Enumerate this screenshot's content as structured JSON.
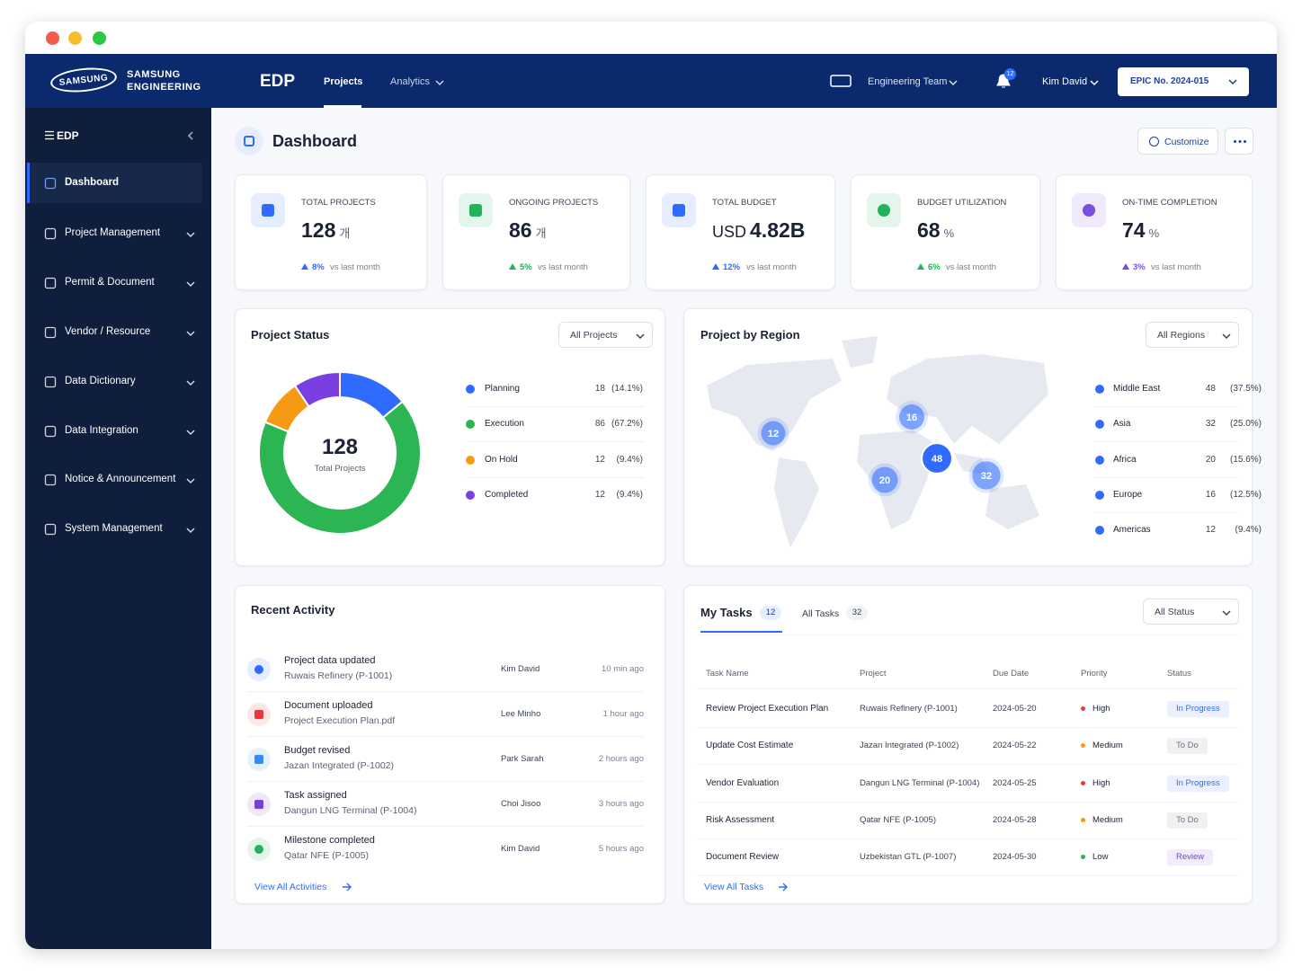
{
  "brand": {
    "logo": "SAMSUNG",
    "line1": "SAMSUNG",
    "line2": "ENGINEERING"
  },
  "nav": {
    "app": "EDP",
    "tabs": [
      "Projects",
      "Analytics"
    ],
    "team": "Engineering Team",
    "notifications": 12,
    "user": "Kim David",
    "epic": "EPIC No. 2024-015"
  },
  "sidebar": {
    "title": "EDP",
    "items": [
      "Dashboard",
      "Project Management",
      "Permit & Document",
      "Vendor / Resource",
      "Data Dictionary",
      "Data Integration",
      "Notice & Announcement",
      "System Management"
    ]
  },
  "page": {
    "title": "Dashboard",
    "customize": "Customize"
  },
  "kpis": [
    {
      "label": "TOTAL PROJECTS",
      "prefix": null,
      "value": "128",
      "unit": "개",
      "change": "8%",
      "note": "vs last month",
      "color": "#2f6bff"
    },
    {
      "label": "ONGOING PROJECTS",
      "prefix": null,
      "value": "86",
      "unit": "개",
      "change": "5%",
      "note": "vs last month",
      "color": "#22b257"
    },
    {
      "label": "TOTAL BUDGET",
      "prefix": "USD",
      "value": "4.82B",
      "unit": null,
      "change": "12%",
      "note": "vs last month",
      "color": "#2f6bff"
    },
    {
      "label": "BUDGET UTILIZATION",
      "prefix": null,
      "value": "68",
      "unit": "%",
      "change": "6%",
      "note": "vs last month",
      "color": "#22b257"
    },
    {
      "label": "ON-TIME COMPLETION",
      "prefix": null,
      "value": "74",
      "unit": "%",
      "change": "3%",
      "note": "vs last month",
      "color": "#7b4de0"
    }
  ],
  "project_status": {
    "title": "Project Status",
    "filter": "All Projects",
    "total": 128,
    "total_label": "Total Projects",
    "items": [
      {
        "name": "Planning",
        "count": 18,
        "share": "(14.1%)",
        "color": "#2f6bff"
      },
      {
        "name": "Execution",
        "count": 86,
        "share": "(67.2%)",
        "color": "#2cb653"
      },
      {
        "name": "On Hold",
        "count": 12,
        "share": "(9.4%)",
        "color": "#f59a12"
      },
      {
        "name": "Completed",
        "count": 12,
        "share": "(9.4%)",
        "color": "#7a3fe0"
      }
    ]
  },
  "region": {
    "title": "Project by Region",
    "filter": "All Regions",
    "color": "#2f6bff",
    "items": [
      {
        "name": "Middle East",
        "count": 48,
        "share": "(37.5%)"
      },
      {
        "name": "Asia",
        "count": 32,
        "share": "(25.0%)"
      },
      {
        "name": "Africa",
        "count": 20,
        "share": "(15.6%)"
      },
      {
        "name": "Europe",
        "count": 16,
        "share": "(12.5%)"
      },
      {
        "name": "Americas",
        "count": 12,
        "share": "(9.4%)"
      }
    ]
  },
  "activity": {
    "title": "Recent Activity",
    "link": "View All Activities",
    "items": [
      {
        "title": "Project data updated",
        "subtitle": "Ruwais Refinery (P-1001)",
        "user": "Kim David",
        "time": "10 min ago",
        "color": "#2f6bff"
      },
      {
        "title": "Document uploaded",
        "subtitle": "Project Execution Plan.pdf",
        "user": "Lee Minho",
        "time": "1 hour ago",
        "color": "#e8383d"
      },
      {
        "title": "Budget revised",
        "subtitle": "Jazan Integrated (P-1002)",
        "user": "Park Sarah",
        "time": "2 hours ago",
        "color": "#2f8bff"
      },
      {
        "title": "Task assigned",
        "subtitle": "Dangun LNG Terminal (P-1004)",
        "user": "Choi Jisoo",
        "time": "3 hours ago",
        "color": "#7a3fe0"
      },
      {
        "title": "Milestone completed",
        "subtitle": "Qatar NFE (P-1005)",
        "user": "Kim David",
        "time": "5 hours ago",
        "color": "#22b257"
      }
    ]
  },
  "tasks": {
    "title": "My Tasks",
    "count": 12,
    "all_label": "All Tasks",
    "all_count": 32,
    "filter": "All Status",
    "link": "View All Tasks",
    "columns": [
      "Task Name",
      "Project",
      "Due Date",
      "Priority",
      "Status"
    ],
    "rows": [
      {
        "task": "Review Project Execution Plan",
        "project": "Ruwais Refinery (P-1001)",
        "due": "2024-05-20",
        "priority": "High",
        "priority_color": "#e8383d",
        "status": "In Progress",
        "status_color": "#2f6bff"
      },
      {
        "task": "Update Cost Estimate",
        "project": "Jazan Integrated (P-1002)",
        "due": "2024-05-22",
        "priority": "Medium",
        "priority_color": "#f59a12",
        "status": "To Do",
        "status_color": "#6b7280"
      },
      {
        "task": "Vendor Evaluation",
        "project": "Dangun LNG Terminal (P-1004)",
        "due": "2024-05-25",
        "priority": "High",
        "priority_color": "#e8383d",
        "status": "In Progress",
        "status_color": "#2f6bff"
      },
      {
        "task": "Risk Assessment",
        "project": "Qatar NFE (P-1005)",
        "due": "2024-05-28",
        "priority": "Medium",
        "priority_color": "#f59a12",
        "status": "To Do",
        "status_color": "#6b7280"
      },
      {
        "task": "Document Review",
        "project": "Uzbekistan GTL (P-1007)",
        "due": "2024-05-30",
        "priority": "Low",
        "priority_color": "#22b257",
        "status": "Review",
        "status_color": "#7a3fe0"
      }
    ]
  }
}
